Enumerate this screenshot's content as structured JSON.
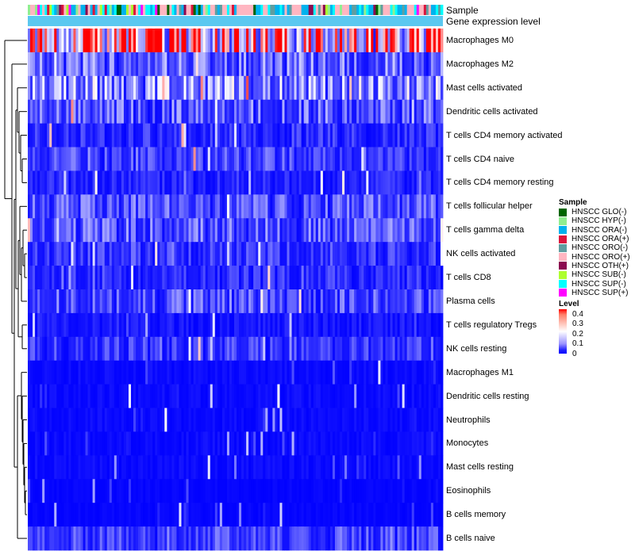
{
  "chart_data": {
    "type": "heatmap",
    "title": "",
    "annotation_tracks": [
      "Sample",
      "Gene expression level"
    ],
    "rows": [
      "Macrophages M0",
      "Macrophages M2",
      "Mast cells activated",
      "Dendritic cells activated",
      "T cells CD4 memory activated",
      "T cells CD4 naive",
      "T cells CD4 memory resting",
      "T cells follicular helper",
      "T cells gamma delta",
      "NK cells activated",
      "T cells CD8",
      "Plasma cells",
      "T cells regulatory  Tregs",
      "NK cells resting",
      "Macrophages M1",
      "Dendritic cells resting",
      "Neutrophils",
      "Monocytes",
      "Mast cells resting",
      "Eosinophils",
      "B cells memory",
      "B cells naive"
    ],
    "row_mean_levels": [
      0.32,
      0.09,
      0.12,
      0.08,
      0.04,
      0.06,
      0.03,
      0.07,
      0.08,
      0.05,
      0.04,
      0.07,
      0.02,
      0.05,
      0.01,
      0.01,
      0.01,
      0.01,
      0.01,
      0.005,
      0.005,
      0.06
    ],
    "n_samples": 173,
    "legend": {
      "sample_title": "Sample",
      "samples": [
        {
          "name": "HNSCC GLO(-)",
          "color": "#006400"
        },
        {
          "name": "HNSCC HYP(-)",
          "color": "#90ee90"
        },
        {
          "name": "HNSCC ORA(-)",
          "color": "#00b2ee"
        },
        {
          "name": "HNSCC ORA(+)",
          "color": "#dc143c"
        },
        {
          "name": "HNSCC ORO(-)",
          "color": "#5f9ea0"
        },
        {
          "name": "HNSCC ORO(+)",
          "color": "#ffb6c1"
        },
        {
          "name": "HNSCC OTH(+)",
          "color": "#8b0a50"
        },
        {
          "name": "HNSCC SUB(-)",
          "color": "#adff2f"
        },
        {
          "name": "HNSCC SUP(-)",
          "color": "#00ffff"
        },
        {
          "name": "HNSCC SUP(+)",
          "color": "#ff00ff"
        }
      ],
      "level_title": "Level",
      "level_ticks": [
        "0.4",
        "0.3",
        "0.2",
        "0.1",
        "0"
      ],
      "level_range": [
        0,
        0.4
      ],
      "level_colors": {
        "high": "#ff0000",
        "mid": "#ffffff",
        "low": "#0000ff"
      }
    },
    "gene_expression_track_color": "#5bc8f0"
  }
}
